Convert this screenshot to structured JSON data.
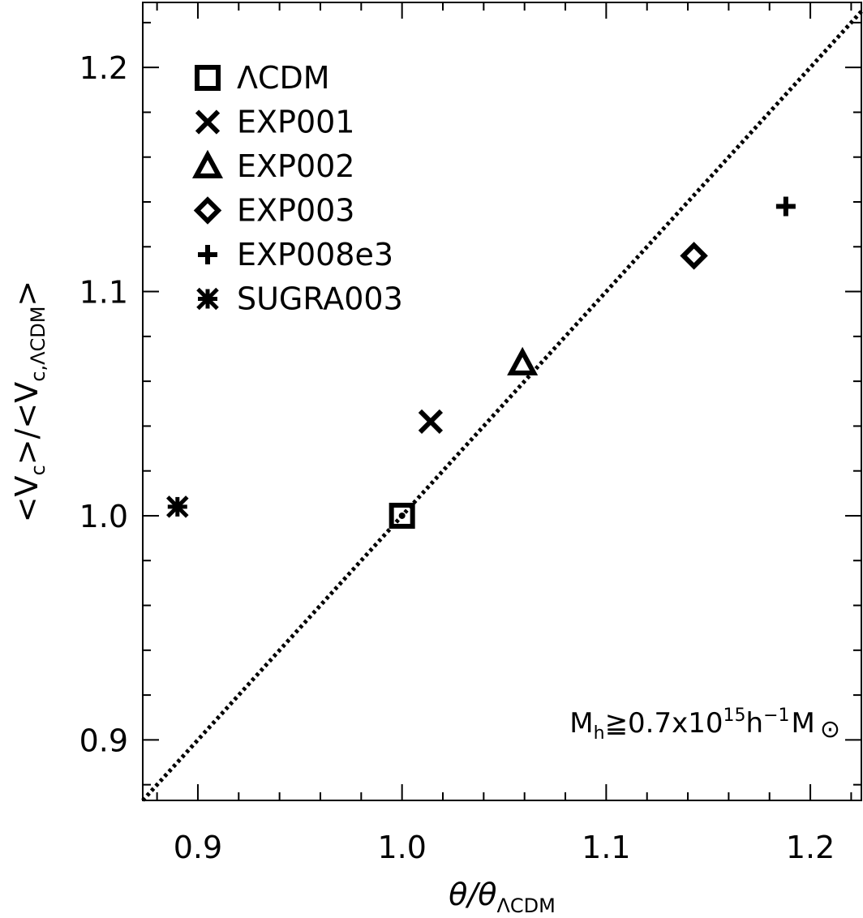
{
  "chart_data": {
    "type": "scatter",
    "title": "",
    "xlabel": {
      "main": "θ/θ",
      "sub": "ΛCDM"
    },
    "ylabel": {
      "pre": "<V",
      "sub1": "c",
      "mid": ">/<V",
      "sub2": "c,ΛCDM",
      "post": ">"
    },
    "xlim": [
      0.873,
      1.225
    ],
    "ylim": [
      0.873,
      1.229
    ],
    "x_ticks": [
      0.9,
      1.0,
      1.1,
      1.2
    ],
    "x_tick_labels": [
      "0.9",
      "1.0",
      "1.1",
      "1.2"
    ],
    "y_ticks": [
      0.9,
      1.0,
      1.1,
      1.2
    ],
    "y_tick_labels": [
      "0.9",
      "1.0",
      "1.1",
      "1.2"
    ],
    "x_minor_step": 0.02,
    "y_minor_step": 0.02,
    "grid": false,
    "reference_line": {
      "style": "dotted",
      "slope": 1,
      "intercept": 0
    },
    "legend_position": "top-left",
    "series": [
      {
        "name": "ΛCDM",
        "marker": "square",
        "x": 1.0,
        "y": 1.0,
        "extra_marker": "dot"
      },
      {
        "name": "EXP001",
        "marker": "x",
        "x": 1.014,
        "y": 1.042
      },
      {
        "name": "EXP002",
        "marker": "triangle",
        "x": 1.059,
        "y": 1.068
      },
      {
        "name": "EXP003",
        "marker": "diamond",
        "x": 1.143,
        "y": 1.116
      },
      {
        "name": "EXP008e3",
        "marker": "plus",
        "x": 1.188,
        "y": 1.138
      },
      {
        "name": "SUGRA003",
        "marker": "asterisk",
        "x": 0.89,
        "y": 1.004
      }
    ],
    "annotation": {
      "M": "M",
      "sub_h": "h",
      "rel": "≧0.7x10",
      "exp": "15",
      "h": "h",
      "neg1": "−1",
      "Msun": "M",
      "sun_symbol": "⊙"
    }
  }
}
